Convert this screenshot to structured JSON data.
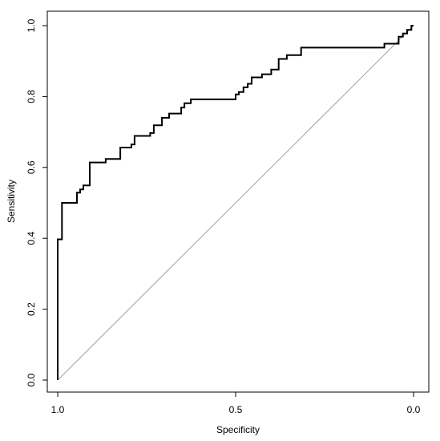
{
  "chart_data": {
    "type": "line",
    "title": "",
    "xlabel": "Specificity",
    "ylabel": "Sensitivity",
    "x_reversed": true,
    "xlim": [
      1.0,
      0.0
    ],
    "ylim": [
      0.0,
      1.0
    ],
    "x_ticks": [
      1.0,
      0.5,
      0.0
    ],
    "x_tick_labels": [
      "1.0",
      "0.5",
      "0.0"
    ],
    "y_ticks": [
      0.0,
      0.2,
      0.4,
      0.6,
      0.8,
      1.0
    ],
    "y_tick_labels": [
      "0.0",
      "0.2",
      "0.4",
      "0.6",
      "0.8",
      "1.0"
    ],
    "grid": false,
    "reference_line": {
      "from": [
        1.0,
        0.0
      ],
      "to": [
        0.0,
        1.0
      ],
      "color": "#a0a0a0"
    },
    "series": [
      {
        "color": "#000000",
        "points": [
          [
            1.0,
            0.0
          ],
          [
            1.0,
            0.397
          ],
          [
            0.988,
            0.397
          ],
          [
            0.988,
            0.5
          ],
          [
            0.946,
            0.5
          ],
          [
            0.946,
            0.529
          ],
          [
            0.937,
            0.529
          ],
          [
            0.937,
            0.538
          ],
          [
            0.928,
            0.538
          ],
          [
            0.928,
            0.549
          ],
          [
            0.91,
            0.549
          ],
          [
            0.91,
            0.614
          ],
          [
            0.865,
            0.614
          ],
          [
            0.865,
            0.624
          ],
          [
            0.824,
            0.624
          ],
          [
            0.824,
            0.656
          ],
          [
            0.793,
            0.656
          ],
          [
            0.793,
            0.665
          ],
          [
            0.784,
            0.665
          ],
          [
            0.784,
            0.689
          ],
          [
            0.74,
            0.689
          ],
          [
            0.74,
            0.697
          ],
          [
            0.73,
            0.697
          ],
          [
            0.73,
            0.719
          ],
          [
            0.707,
            0.719
          ],
          [
            0.707,
            0.74
          ],
          [
            0.687,
            0.74
          ],
          [
            0.687,
            0.752
          ],
          [
            0.653,
            0.752
          ],
          [
            0.653,
            0.769
          ],
          [
            0.644,
            0.769
          ],
          [
            0.644,
            0.781
          ],
          [
            0.626,
            0.781
          ],
          [
            0.626,
            0.792
          ],
          [
            0.5,
            0.792
          ],
          [
            0.5,
            0.806
          ],
          [
            0.491,
            0.806
          ],
          [
            0.491,
            0.813
          ],
          [
            0.478,
            0.813
          ],
          [
            0.478,
            0.826
          ],
          [
            0.466,
            0.826
          ],
          [
            0.466,
            0.836
          ],
          [
            0.455,
            0.836
          ],
          [
            0.455,
            0.854
          ],
          [
            0.426,
            0.854
          ],
          [
            0.426,
            0.863
          ],
          [
            0.4,
            0.863
          ],
          [
            0.4,
            0.876
          ],
          [
            0.379,
            0.876
          ],
          [
            0.379,
            0.906
          ],
          [
            0.356,
            0.906
          ],
          [
            0.356,
            0.917
          ],
          [
            0.316,
            0.917
          ],
          [
            0.316,
            0.938
          ],
          [
            0.082,
            0.938
          ],
          [
            0.082,
            0.949
          ],
          [
            0.042,
            0.949
          ],
          [
            0.042,
            0.969
          ],
          [
            0.03,
            0.969
          ],
          [
            0.03,
            0.978
          ],
          [
            0.018,
            0.978
          ],
          [
            0.018,
            0.988
          ],
          [
            0.006,
            0.988
          ],
          [
            0.006,
            1.0
          ],
          [
            0.0,
            1.0
          ]
        ]
      }
    ]
  }
}
